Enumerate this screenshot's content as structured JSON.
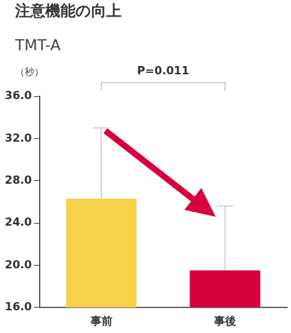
{
  "chart_data": {
    "type": "bar",
    "title": "注意機能の向上",
    "subtitle": "TMT-A",
    "y_label": "（秒）",
    "categories": [
      "事前",
      "事後"
    ],
    "values": [
      26.3,
      19.5
    ],
    "errors": [
      6.7,
      6.1
    ],
    "colors": [
      "#f6d24b",
      "#d7003c"
    ],
    "annotation": "P=0.011",
    "ylim": [
      16,
      36
    ],
    "yticks": [
      {
        "value": 16,
        "label": "16.0"
      },
      {
        "value": 20,
        "label": "20.0"
      },
      {
        "value": 24,
        "label": "24.0"
      },
      {
        "value": 28,
        "label": "28.0"
      },
      {
        "value": 32,
        "label": "32.0"
      },
      {
        "value": 36,
        "label": "36.0"
      }
    ],
    "grid": false
  }
}
